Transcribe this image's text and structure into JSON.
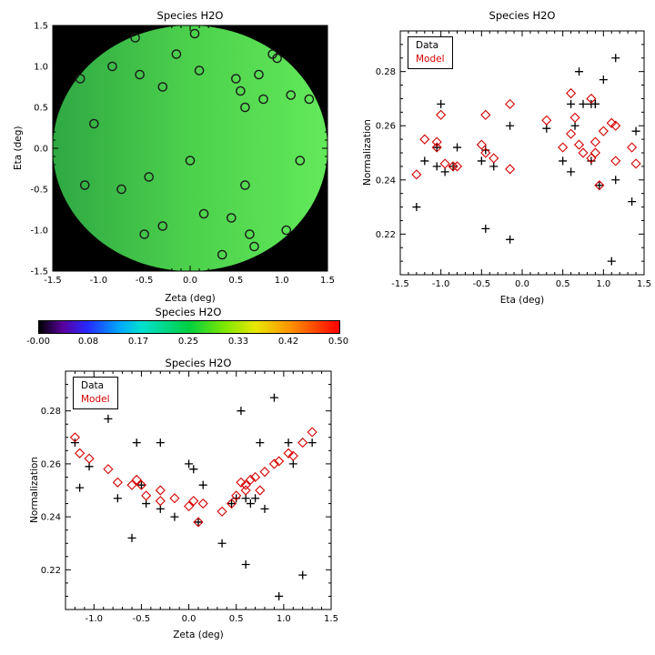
{
  "legend": {
    "data_label": "Data",
    "model_label": "Model"
  },
  "colors": {
    "data_marker": "#000000",
    "model_marker": "#d40000",
    "map_background": "#000000",
    "map_disk_green": "#4cd14c"
  },
  "chart_data": {
    "stars": {
      "zeta": [
        -1.2,
        -1.15,
        -1.05,
        -0.85,
        -0.75,
        -0.6,
        -0.55,
        -0.5,
        -0.45,
        -0.3,
        -0.3,
        -0.15,
        0.05,
        0.1,
        0.0,
        0.15,
        0.35,
        0.45,
        0.5,
        0.55,
        0.6,
        0.6,
        0.65,
        0.7,
        0.75,
        0.8,
        0.9,
        0.95,
        1.05,
        1.1,
        1.2,
        1.3
      ],
      "eta": [
        0.85,
        -0.45,
        0.3,
        1.0,
        -0.5,
        1.35,
        0.9,
        -1.05,
        -0.35,
        0.75,
        -0.95,
        1.15,
        1.4,
        0.95,
        -0.15,
        -0.8,
        -1.3,
        -0.85,
        0.85,
        0.7,
        0.5,
        -0.45,
        -1.05,
        -1.2,
        0.9,
        0.6,
        1.15,
        1.1,
        -1.0,
        0.65,
        -0.15,
        0.6
      ],
      "data_normalization": [
        0.268,
        0.251,
        0.259,
        0.277,
        0.247,
        0.232,
        0.268,
        0.252,
        0.245,
        0.268,
        0.243,
        0.24,
        0.258,
        0.238,
        0.26,
        0.252,
        0.23,
        0.245,
        0.247,
        0.28,
        0.247,
        0.222,
        0.245,
        0.247,
        0.268,
        0.243,
        0.285,
        0.21,
        0.268,
        0.26,
        0.218,
        0.268
      ],
      "model_normalization": [
        0.27,
        0.264,
        0.262,
        0.258,
        0.253,
        0.252,
        0.254,
        0.252,
        0.248,
        0.25,
        0.246,
        0.247,
        0.246,
        0.238,
        0.244,
        0.245,
        0.242,
        0.245,
        0.248,
        0.253,
        0.252,
        0.25,
        0.254,
        0.255,
        0.25,
        0.257,
        0.26,
        0.261,
        0.264,
        0.263,
        0.268,
        0.272
      ]
    },
    "charts": [
      {
        "id": "map",
        "type": "scatter",
        "title": "Species H2O",
        "xlabel": "Zeta (deg)",
        "ylabel": "Eta (deg)",
        "xlim": [
          -1.5,
          1.5
        ],
        "ylim": [
          -1.5,
          1.5
        ],
        "xminor": 0.1,
        "yminor": 0.1,
        "xtick_labels": [
          "-1.5",
          "-1.0",
          "-0.5",
          "0.0",
          "0.5",
          "1.0",
          "1.5"
        ],
        "ytick_labels": [
          "-1.5",
          "-1.0",
          "-0.5",
          "0.0",
          "0.5",
          "1.0",
          "1.5"
        ],
        "x_field": "zeta",
        "y_field": "eta",
        "marker": "open-circle",
        "marker_color": "#1a1a1a",
        "background": "#000000",
        "disk_radius": 1.5,
        "disk_gradient": [
          "#2fa843",
          "#4cd14c",
          "#63e95a"
        ]
      },
      {
        "id": "eta_scatter",
        "type": "scatter",
        "title": "Species H2O",
        "xlabel": "Eta (deg)",
        "ylabel": "Normalization",
        "xlim": [
          -1.5,
          1.5
        ],
        "ylim": [
          0.205,
          0.295
        ],
        "xminor": 0.1,
        "yminor": 0.005,
        "xtick_labels": [
          "-1.5",
          "-1.0",
          "-0.5",
          "0.0",
          "0.5",
          "1.0",
          "1.5"
        ],
        "ytick_labels": [
          "0.22",
          "0.24",
          "0.26",
          "0.28"
        ],
        "x_field": "eta",
        "series": [
          {
            "name": "Data",
            "y_field": "data_normalization",
            "marker": "plus",
            "color": "#000000"
          },
          {
            "name": "Model",
            "y_field": "model_normalization",
            "marker": "diamond",
            "color": "#d40000"
          }
        ],
        "legend_position": "top-left"
      },
      {
        "id": "colorbar",
        "type": "colorbar",
        "title": "Species H2O",
        "tick_labels": [
          "-0.00",
          "0.08",
          "0.17",
          "0.25",
          "0.33",
          "0.42",
          "0.50"
        ],
        "value_range": [
          0.0,
          0.5
        ],
        "gradient_stops": [
          [
            0.0,
            "#000000"
          ],
          [
            0.08,
            "#5a00a0"
          ],
          [
            0.16,
            "#2828ff"
          ],
          [
            0.26,
            "#00a0ff"
          ],
          [
            0.34,
            "#00e0d0"
          ],
          [
            0.5,
            "#00d040"
          ],
          [
            0.62,
            "#80e800"
          ],
          [
            0.72,
            "#e8e800"
          ],
          [
            0.84,
            "#ff9000"
          ],
          [
            1.0,
            "#ff0000"
          ]
        ]
      },
      {
        "id": "zeta_scatter",
        "type": "scatter",
        "title": "Species H2O",
        "xlabel": "Zeta (deg)",
        "ylabel": "Normalization",
        "xlim": [
          -1.3,
          1.5
        ],
        "ylim": [
          0.205,
          0.295
        ],
        "xminor": 0.1,
        "yminor": 0.005,
        "xtick_labels": [
          "-1.0",
          "-0.5",
          "0.0",
          "0.5",
          "1.0",
          "1.5"
        ],
        "ytick_labels": [
          "0.22",
          "0.24",
          "0.26",
          "0.28"
        ],
        "x_field": "zeta",
        "series": [
          {
            "name": "Data",
            "y_field": "data_normalization",
            "marker": "plus",
            "color": "#000000"
          },
          {
            "name": "Model",
            "y_field": "model_normalization",
            "marker": "diamond",
            "color": "#d40000"
          }
        ],
        "legend_position": "top-left"
      }
    ]
  }
}
